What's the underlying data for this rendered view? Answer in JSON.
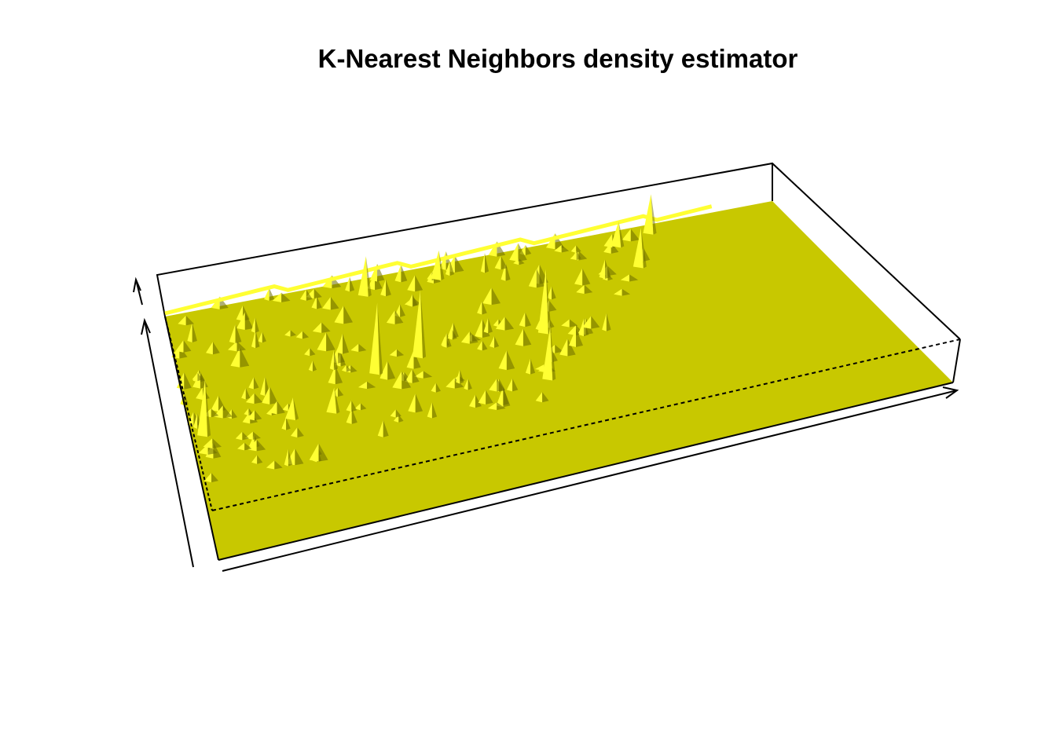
{
  "chart_data": {
    "type": "surface3d",
    "title": "K-Nearest Neighbors density estimator",
    "surface_color": "#c8c800",
    "highlight_color": "#ffff33",
    "shadow_color": "#6b6b00",
    "axes_labels_shown": false,
    "box": true,
    "peaks": [
      {
        "u": 0.32,
        "v": 0.93,
        "h": 0.55
      },
      {
        "u": 0.44,
        "v": 0.94,
        "h": 0.4
      },
      {
        "u": 0.79,
        "v": 0.96,
        "h": 0.55
      },
      {
        "u": 0.73,
        "v": 0.93,
        "h": 0.35
      },
      {
        "u": 0.29,
        "v": 0.6,
        "h": 1.0
      },
      {
        "u": 0.36,
        "v": 0.63,
        "h": 0.95
      },
      {
        "u": 0.55,
        "v": 0.62,
        "h": 0.9
      },
      {
        "u": 0.52,
        "v": 0.42,
        "h": 0.75
      },
      {
        "u": 0.74,
        "v": 0.82,
        "h": 0.55
      },
      {
        "u": 0.02,
        "v": 0.5,
        "h": 0.8
      },
      {
        "u": 0.15,
        "v": 0.49,
        "h": 0.3
      },
      {
        "u": 0.21,
        "v": 0.48,
        "h": 0.35
      }
    ]
  }
}
